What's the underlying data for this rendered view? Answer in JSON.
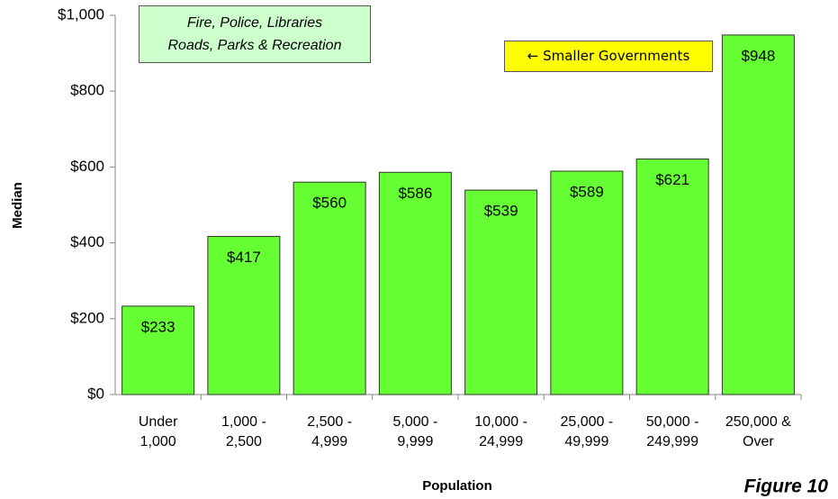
{
  "chart_data": {
    "type": "bar",
    "categories": [
      "Under 1,000",
      "1,000 - 2,500",
      "2,500 - 4,999",
      "5,000 - 9,999",
      "10,000 - 24,999",
      "25,000 - 49,999",
      "50,000 - 249,999",
      "250,000 & Over"
    ],
    "values": [
      233,
      417,
      560,
      586,
      539,
      589,
      621,
      948
    ],
    "value_labels": [
      "$233",
      "$417",
      "$560",
      "$586",
      "$539",
      "$589",
      "$621",
      "$948"
    ],
    "color": "#66ff33",
    "ylim": [
      0,
      1000
    ],
    "yticks": [
      {
        "value": 0,
        "label": "$0"
      },
      {
        "value": 200,
        "label": "$200"
      },
      {
        "value": 400,
        "label": "$400"
      },
      {
        "value": 600,
        "label": "$600"
      },
      {
        "value": 800,
        "label": "$800"
      },
      {
        "value": 1000,
        "label": "$1,000"
      }
    ],
    "xlabel": "Population",
    "ylabel": "Median",
    "annotations": {
      "services": [
        "Fire, Police, Libraries",
        "Roads, Parks & Recreation"
      ],
      "arrow_note": "← Smaller Governments",
      "figure": "Figure 10"
    }
  }
}
